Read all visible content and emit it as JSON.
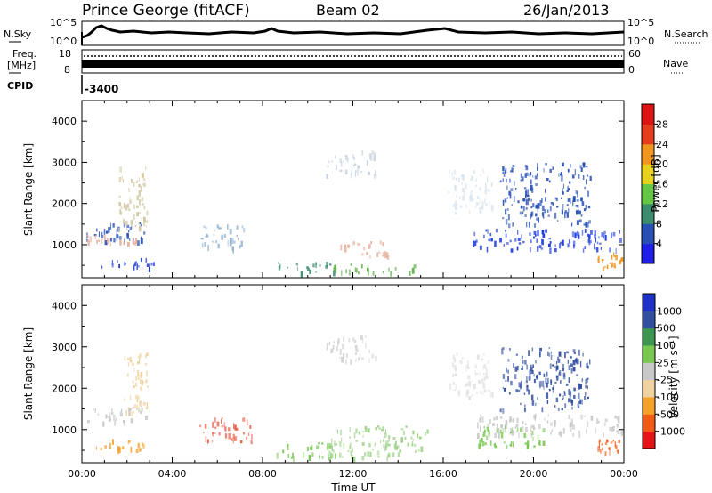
{
  "header": {
    "station": "Prince George (fitACF)",
    "beam": "Beam 02",
    "date": "26/Jan/2013"
  },
  "top_panels": {
    "nsky_label": "N.Sky",
    "nsky_ticks": [
      "10^5",
      "10^0"
    ],
    "nsearch_label": "N.Search",
    "nsearch_ticks": [
      "10^5",
      "10^0"
    ],
    "freq_label_1": "Freq.",
    "freq_label_2": "[MHz]",
    "freq_ticks": [
      "18",
      "8"
    ],
    "nave_label": "Nave",
    "nave_ticks": [
      "60",
      "0"
    ],
    "cpid_label": "CPID",
    "cpid_value": "-3400"
  },
  "chart_data": [
    {
      "type": "heatmap",
      "name": "power",
      "ylabel": "Slant Range [km]",
      "ylim": [
        200,
        4500
      ],
      "yticks": [
        1000,
        2000,
        3000,
        4000
      ],
      "xlim": [
        0,
        24
      ],
      "colorbar_label": "Power [dB]",
      "colorbar_ticks": [
        "4",
        "8",
        "12",
        "16",
        "20",
        "24",
        "28"
      ],
      "colorbar_colors": [
        "#1e1ee6",
        "#2850b4",
        "#3c8c6e",
        "#64c846",
        "#e6d21e",
        "#f0961e",
        "#e63c1e",
        "#dc1414"
      ],
      "echo_regions": [
        {
          "t0": 0.2,
          "t1": 2.8,
          "r0": 1100,
          "r1": 1600,
          "color": "#2850b4"
        },
        {
          "t0": 0.2,
          "t1": 2.4,
          "r0": 1050,
          "r1": 1250,
          "color": "#e6b4a0"
        },
        {
          "t0": 1.6,
          "t1": 2.9,
          "r0": 1400,
          "r1": 2900,
          "color": "#d2c8a0"
        },
        {
          "t0": 0.8,
          "t1": 3.2,
          "r0": 450,
          "r1": 700,
          "color": "#1e3cdc"
        },
        {
          "t0": 5.2,
          "t1": 7.2,
          "r0": 900,
          "r1": 1500,
          "color": "#96b4d2"
        },
        {
          "t0": 8.6,
          "t1": 11.2,
          "r0": 350,
          "r1": 600,
          "color": "#3c8c6e"
        },
        {
          "t0": 11.4,
          "t1": 13.6,
          "r0": 700,
          "r1": 1100,
          "color": "#e6b4a0"
        },
        {
          "t0": 11.0,
          "t1": 15.3,
          "r0": 350,
          "r1": 550,
          "color": "#64b450"
        },
        {
          "t0": 10.8,
          "t1": 13.0,
          "r0": 2700,
          "r1": 3300,
          "color": "#c8d2dc"
        },
        {
          "t0": 16.2,
          "t1": 18.2,
          "r0": 1800,
          "r1": 2900,
          "color": "#dce6ee"
        },
        {
          "t0": 17.3,
          "t1": 24.0,
          "r0": 900,
          "r1": 1400,
          "color": "#1e3cdc"
        },
        {
          "t0": 18.5,
          "t1": 22.5,
          "r0": 1500,
          "r1": 3000,
          "color": "#2850b4"
        },
        {
          "t0": 22.8,
          "t1": 24.0,
          "r0": 450,
          "r1": 850,
          "color": "#f0961e"
        }
      ]
    },
    {
      "type": "heatmap",
      "name": "velocity",
      "ylabel": "Slant Range [km]",
      "ylim": [
        200,
        4500
      ],
      "yticks": [
        1000,
        2000,
        3000,
        4000
      ],
      "xlim": [
        0,
        24
      ],
      "xticks": [
        "00:00",
        "04:00",
        "08:00",
        "12:00",
        "16:00",
        "20:00",
        "00:00"
      ],
      "xlabel": "Time UT",
      "colorbar_label": "Velocity [m s⁻¹]",
      "colorbar_ticks": [
        "-1000",
        "-500",
        "-100",
        "-25",
        "25",
        "100",
        "500",
        "1000"
      ],
      "colorbar_colors": [
        "#e61414",
        "#f05a14",
        "#f5a028",
        "#f0d2a0",
        "#c8c8c8",
        "#78c850",
        "#3c9650",
        "#3250a0",
        "#1e32c8"
      ],
      "echo_regions": [
        {
          "t0": 0.2,
          "t1": 2.8,
          "r0": 1150,
          "r1": 1550,
          "color": "#c8c8c8"
        },
        {
          "t0": 0.6,
          "t1": 2.8,
          "r0": 500,
          "r1": 800,
          "color": "#f5a028"
        },
        {
          "t0": 1.8,
          "t1": 2.9,
          "r0": 1400,
          "r1": 2900,
          "color": "#f0d2a0"
        },
        {
          "t0": 5.2,
          "t1": 7.5,
          "r0": 700,
          "r1": 1300,
          "color": "#e66450"
        },
        {
          "t0": 8.6,
          "t1": 11.2,
          "r0": 350,
          "r1": 700,
          "color": "#78c850"
        },
        {
          "t0": 10.8,
          "t1": 15.3,
          "r0": 350,
          "r1": 1100,
          "color": "#a0d28c"
        },
        {
          "t0": 10.8,
          "t1": 13.0,
          "r0": 2700,
          "r1": 3300,
          "color": "#d2d2d2"
        },
        {
          "t0": 16.2,
          "t1": 18.2,
          "r0": 1800,
          "r1": 2900,
          "color": "#e1e1e1"
        },
        {
          "t0": 17.3,
          "t1": 24.0,
          "r0": 900,
          "r1": 1400,
          "color": "#c8c8c8"
        },
        {
          "t0": 17.5,
          "t1": 20.5,
          "r0": 600,
          "r1": 1100,
          "color": "#78c850"
        },
        {
          "t0": 18.5,
          "t1": 22.5,
          "r0": 1500,
          "r1": 3000,
          "color": "#3250a0"
        },
        {
          "t0": 22.8,
          "t1": 24.0,
          "r0": 450,
          "r1": 850,
          "color": "#f05a14"
        }
      ]
    }
  ]
}
